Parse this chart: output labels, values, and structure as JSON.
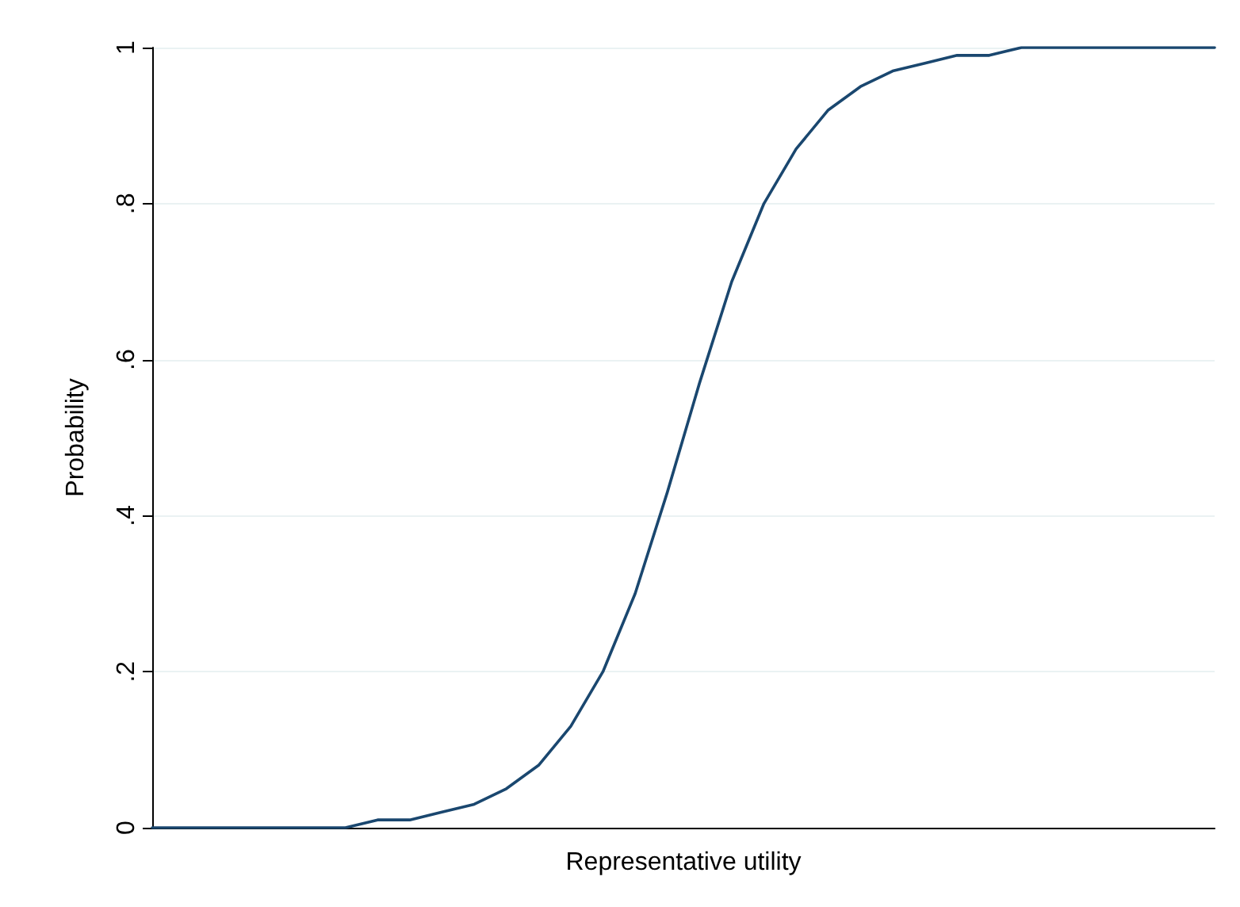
{
  "chart_data": {
    "type": "line",
    "xlabel": "Representative utility",
    "ylabel": "Probability",
    "categories": [
      null,
      null,
      null,
      null,
      null,
      null,
      null,
      null,
      null,
      null,
      null,
      null,
      null,
      null,
      null,
      null,
      null,
      null,
      null,
      null,
      null,
      null,
      null,
      null,
      null,
      null,
      null,
      null,
      null,
      null,
      null,
      null,
      null,
      null
    ],
    "series": [
      {
        "color": "#1a476f",
        "values": [
          0,
          0,
          0,
          0,
          0,
          0,
          0,
          0.01,
          0.01,
          0.02,
          0.03,
          0.05,
          0.08,
          0.13,
          0.2,
          0.3,
          0.43,
          0.57,
          0.7,
          0.8,
          0.87,
          0.92,
          0.95,
          0.97,
          0.98,
          0.99,
          0.99,
          1,
          1,
          1,
          1,
          1,
          1,
          1
        ]
      }
    ],
    "ylim": [
      0,
      1
    ],
    "yticks": [
      {
        "value": 0,
        "label": "0"
      },
      {
        "value": 0.2,
        "label": ".2"
      },
      {
        "value": 0.4,
        "label": ".4"
      },
      {
        "value": 0.6,
        "label": ".6"
      },
      {
        "value": 0.8,
        "label": ".8"
      },
      {
        "value": 1,
        "label": "1"
      }
    ],
    "grid": "y",
    "marker": "none",
    "line_style": "solid",
    "tick_labels": "y"
  }
}
